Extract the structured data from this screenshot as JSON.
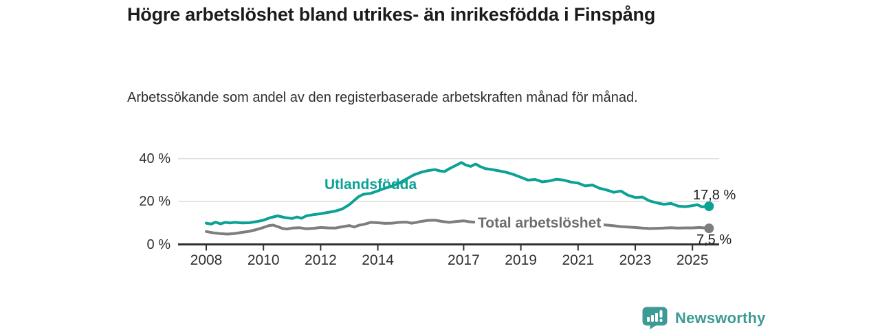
{
  "header": {
    "title": "Högre arbetslöshet bland utrikes- än inrikesfödda i Finspång",
    "subtitle": "Arbetssökande som andel av den registerbaserade arbetskraften månad för månad."
  },
  "footer": {
    "brand": "Newsworthy"
  },
  "colors": {
    "foreign_line": "#0ca195",
    "total_line": "#7e7e7e",
    "total_label": "#6d6d6d",
    "gridline": "#d9d9d9",
    "axis": "#303030",
    "brand_teal": "#3d9b95"
  },
  "chart_data": {
    "type": "line",
    "title": "Högre arbetslöshet bland utrikes- än inrikesfödda i Finspång",
    "subtitle": "Arbetssökande som andel av den registerbaserade arbetskraften månad för månad.",
    "xlabel": "",
    "ylabel": "",
    "unit": "%",
    "grid": "horizontal",
    "legend_position": "inline-labels",
    "xlim": [
      2007.6,
      2026.0
    ],
    "ylim": [
      0,
      42
    ],
    "y_ticks": [
      {
        "value": 0,
        "label": "0 %"
      },
      {
        "value": 20,
        "label": "20 %"
      },
      {
        "value": 40,
        "label": "40 %"
      }
    ],
    "x_ticks": [
      {
        "value": 2008,
        "label": "2008"
      },
      {
        "value": 2010,
        "label": "2010"
      },
      {
        "value": 2012,
        "label": "2012"
      },
      {
        "value": 2014,
        "label": "2014"
      },
      {
        "value": 2017,
        "label": "2017"
      },
      {
        "value": 2019,
        "label": "2019"
      },
      {
        "value": 2021,
        "label": "2021"
      },
      {
        "value": 2023,
        "label": "2023"
      },
      {
        "value": 2025,
        "label": "2025"
      }
    ],
    "series": [
      {
        "name": "Utlandsfödda",
        "color": "#0ca195",
        "end_label": "17,8 %",
        "end_value": 17.8,
        "points": [
          [
            2008.0,
            9.9
          ],
          [
            2008.17,
            9.5
          ],
          [
            2008.33,
            10.4
          ],
          [
            2008.5,
            9.6
          ],
          [
            2008.67,
            10.3
          ],
          [
            2008.83,
            10.0
          ],
          [
            2009.0,
            10.3
          ],
          [
            2009.25,
            10.0
          ],
          [
            2009.5,
            10.1
          ],
          [
            2009.75,
            10.6
          ],
          [
            2010.0,
            11.3
          ],
          [
            2010.25,
            12.5
          ],
          [
            2010.5,
            13.3
          ],
          [
            2010.75,
            12.5
          ],
          [
            2011.0,
            12.1
          ],
          [
            2011.17,
            12.8
          ],
          [
            2011.33,
            12.2
          ],
          [
            2011.5,
            13.3
          ],
          [
            2011.75,
            13.9
          ],
          [
            2012.0,
            14.3
          ],
          [
            2012.25,
            14.9
          ],
          [
            2012.5,
            15.5
          ],
          [
            2012.75,
            16.5
          ],
          [
            2013.0,
            18.5
          ],
          [
            2013.17,
            20.5
          ],
          [
            2013.33,
            22.3
          ],
          [
            2013.5,
            23.4
          ],
          [
            2013.75,
            23.8
          ],
          [
            2014.0,
            25.0
          ],
          [
            2014.25,
            26.2
          ],
          [
            2014.5,
            27.2
          ],
          [
            2014.75,
            28.6
          ],
          [
            2015.0,
            30.5
          ],
          [
            2015.25,
            32.4
          ],
          [
            2015.5,
            33.6
          ],
          [
            2015.75,
            34.4
          ],
          [
            2016.0,
            34.9
          ],
          [
            2016.17,
            34.3
          ],
          [
            2016.33,
            34.0
          ],
          [
            2016.5,
            35.3
          ],
          [
            2016.75,
            37.0
          ],
          [
            2016.92,
            38.2
          ],
          [
            2017.08,
            37.0
          ],
          [
            2017.25,
            36.4
          ],
          [
            2017.42,
            37.5
          ],
          [
            2017.58,
            36.3
          ],
          [
            2017.75,
            35.4
          ],
          [
            2018.0,
            34.9
          ],
          [
            2018.25,
            34.3
          ],
          [
            2018.5,
            33.6
          ],
          [
            2018.75,
            32.6
          ],
          [
            2019.0,
            31.3
          ],
          [
            2019.25,
            30.0
          ],
          [
            2019.5,
            30.3
          ],
          [
            2019.75,
            29.2
          ],
          [
            2020.0,
            29.6
          ],
          [
            2020.25,
            30.4
          ],
          [
            2020.5,
            30.0
          ],
          [
            2020.75,
            29.1
          ],
          [
            2021.0,
            28.6
          ],
          [
            2021.25,
            27.3
          ],
          [
            2021.5,
            27.7
          ],
          [
            2021.75,
            26.2
          ],
          [
            2022.0,
            25.4
          ],
          [
            2022.25,
            24.3
          ],
          [
            2022.5,
            24.9
          ],
          [
            2022.75,
            22.9
          ],
          [
            2023.0,
            21.9
          ],
          [
            2023.25,
            22.1
          ],
          [
            2023.5,
            20.3
          ],
          [
            2023.75,
            19.4
          ],
          [
            2024.0,
            18.7
          ],
          [
            2024.25,
            19.1
          ],
          [
            2024.5,
            17.9
          ],
          [
            2024.75,
            17.6
          ],
          [
            2025.0,
            18.1
          ],
          [
            2025.17,
            18.5
          ],
          [
            2025.33,
            17.5
          ],
          [
            2025.58,
            17.8
          ]
        ]
      },
      {
        "name": "Total arbetslöshet",
        "color": "#7e7e7e",
        "end_label": "7,5 %",
        "end_value": 7.5,
        "points": [
          [
            2008.0,
            6.0
          ],
          [
            2008.25,
            5.4
          ],
          [
            2008.5,
            5.0
          ],
          [
            2008.75,
            4.8
          ],
          [
            2009.0,
            5.1
          ],
          [
            2009.25,
            5.6
          ],
          [
            2009.5,
            6.1
          ],
          [
            2009.75,
            6.9
          ],
          [
            2010.0,
            7.9
          ],
          [
            2010.17,
            8.7
          ],
          [
            2010.33,
            9.0
          ],
          [
            2010.5,
            8.3
          ],
          [
            2010.67,
            7.4
          ],
          [
            2010.83,
            7.2
          ],
          [
            2011.0,
            7.6
          ],
          [
            2011.25,
            7.8
          ],
          [
            2011.5,
            7.3
          ],
          [
            2011.75,
            7.5
          ],
          [
            2012.0,
            7.9
          ],
          [
            2012.25,
            7.7
          ],
          [
            2012.5,
            7.6
          ],
          [
            2012.75,
            8.2
          ],
          [
            2013.0,
            8.8
          ],
          [
            2013.17,
            8.1
          ],
          [
            2013.33,
            8.9
          ],
          [
            2013.5,
            9.3
          ],
          [
            2013.75,
            10.3
          ],
          [
            2014.0,
            10.1
          ],
          [
            2014.25,
            9.8
          ],
          [
            2014.5,
            9.9
          ],
          [
            2014.75,
            10.3
          ],
          [
            2015.0,
            10.4
          ],
          [
            2015.17,
            9.9
          ],
          [
            2015.33,
            10.2
          ],
          [
            2015.5,
            10.7
          ],
          [
            2015.75,
            11.2
          ],
          [
            2016.0,
            11.3
          ],
          [
            2016.25,
            10.7
          ],
          [
            2016.5,
            10.3
          ],
          [
            2016.75,
            10.7
          ],
          [
            2017.0,
            11.0
          ],
          [
            2017.25,
            10.5
          ],
          [
            2017.5,
            10.3
          ],
          [
            2017.75,
            10.6
          ],
          [
            2018.0,
            10.4
          ],
          [
            2018.25,
            10.1
          ],
          [
            2018.5,
            10.0
          ],
          [
            2018.75,
            10.3
          ],
          [
            2019.0,
            10.2
          ],
          [
            2019.25,
            9.9
          ],
          [
            2019.5,
            9.8
          ],
          [
            2019.75,
            10.0
          ],
          [
            2020.0,
            10.1
          ],
          [
            2020.25,
            10.5
          ],
          [
            2020.5,
            10.4
          ],
          [
            2020.75,
            10.1
          ],
          [
            2021.0,
            9.9
          ],
          [
            2021.25,
            9.6
          ],
          [
            2021.5,
            9.4
          ],
          [
            2021.75,
            9.2
          ],
          [
            2022.0,
            9.0
          ],
          [
            2022.25,
            8.7
          ],
          [
            2022.5,
            8.3
          ],
          [
            2022.75,
            8.1
          ],
          [
            2023.0,
            7.9
          ],
          [
            2023.25,
            7.6
          ],
          [
            2023.5,
            7.4
          ],
          [
            2023.75,
            7.5
          ],
          [
            2024.0,
            7.6
          ],
          [
            2024.25,
            7.8
          ],
          [
            2024.5,
            7.6
          ],
          [
            2024.75,
            7.7
          ],
          [
            2025.0,
            7.7
          ],
          [
            2025.25,
            7.9
          ],
          [
            2025.58,
            7.5
          ]
        ]
      }
    ]
  }
}
